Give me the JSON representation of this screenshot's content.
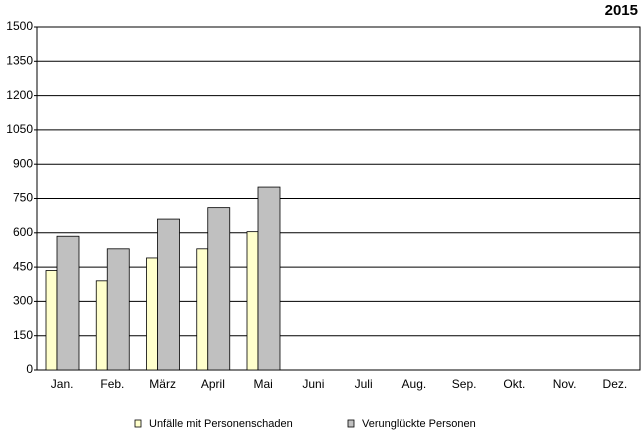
{
  "chart_data": {
    "type": "bar",
    "title": "2015",
    "categories": [
      "Jan.",
      "Feb.",
      "März",
      "April",
      "Mai",
      "Juni",
      "Juli",
      "Aug.",
      "Sep.",
      "Okt.",
      "Nov.",
      "Dez."
    ],
    "series": [
      {
        "name": "Unfälle mit Personenschaden",
        "color": "#ffffcc",
        "values": [
          435,
          390,
          490,
          530,
          605,
          null,
          null,
          null,
          null,
          null,
          null,
          null
        ]
      },
      {
        "name": "Verunglückte Personen",
        "color": "#c0c0c0",
        "values": [
          585,
          530,
          660,
          710,
          800,
          null,
          null,
          null,
          null,
          null,
          null,
          null
        ]
      }
    ],
    "ylim": [
      0,
      1500
    ],
    "yticks": [
      0,
      150,
      300,
      450,
      600,
      750,
      900,
      1050,
      1200,
      1350,
      1500
    ],
    "grid": true,
    "legend": "bottom"
  }
}
